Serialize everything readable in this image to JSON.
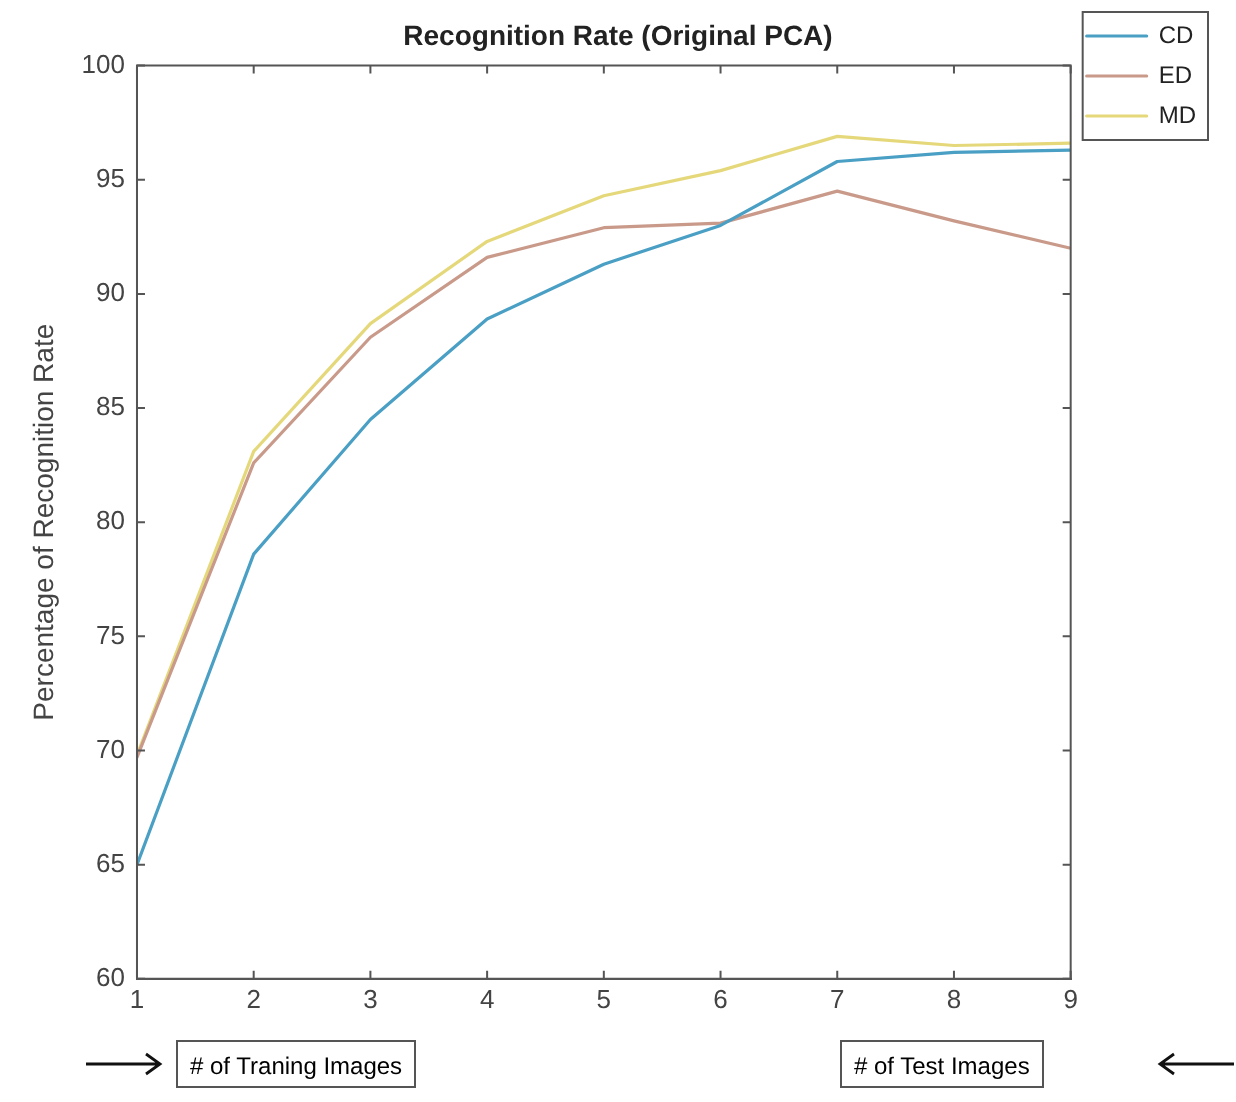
{
  "chart_data": {
    "type": "line",
    "title": "Recognition Rate (Original PCA)",
    "ylabel": "Percentage of Recognition Rate",
    "x": [
      1,
      2,
      3,
      4,
      5,
      6,
      7,
      8,
      9
    ],
    "xlim": [
      1,
      9
    ],
    "xticks": [
      1,
      2,
      3,
      4,
      5,
      6,
      7,
      8,
      9
    ],
    "ylim": [
      60,
      100
    ],
    "yticks": [
      60,
      65,
      70,
      75,
      80,
      85,
      90,
      95,
      100
    ],
    "series": [
      {
        "name": "CD",
        "color": "#4a9fc4",
        "values": [
          65.0,
          78.6,
          84.5,
          88.9,
          91.3,
          93.0,
          95.8,
          96.2,
          96.3
        ]
      },
      {
        "name": "ED",
        "color": "#c99a8a",
        "values": [
          69.7,
          82.6,
          88.1,
          91.6,
          92.9,
          93.1,
          94.5,
          93.2,
          92.0
        ]
      },
      {
        "name": "MD",
        "color": "#e5d87a",
        "values": [
          69.8,
          83.1,
          88.7,
          92.3,
          94.3,
          95.4,
          96.9,
          96.5,
          96.6
        ]
      }
    ],
    "grid": false,
    "legend": "top right",
    "marker": "none",
    "line_style": "solid",
    "annotations": [
      "# of Traning Images",
      "# of Test Images"
    ]
  }
}
